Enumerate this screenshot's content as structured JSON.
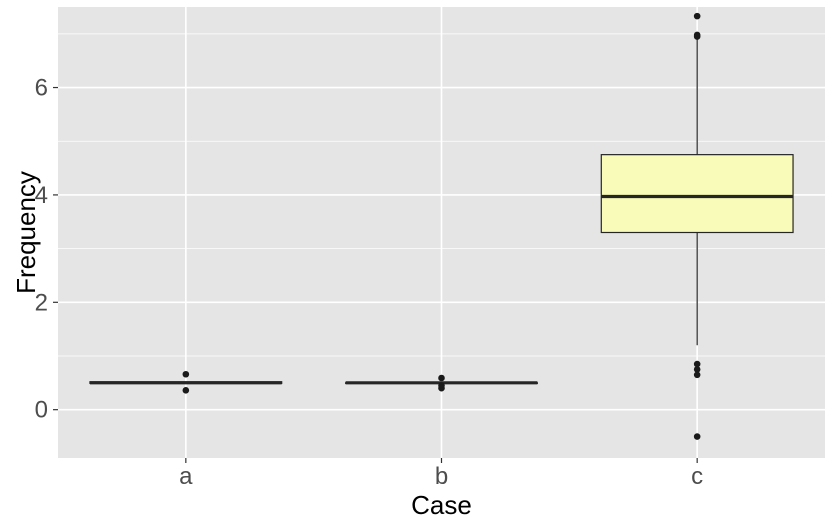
{
  "chart_data": {
    "type": "box",
    "xlabel": "Case",
    "ylabel": "Frequency",
    "ylim": [
      -0.9,
      7.5
    ],
    "y_ticks": [
      0,
      2,
      4,
      6
    ],
    "grid": true,
    "legend": "none",
    "categories": [
      "a",
      "b",
      "c"
    ],
    "boxes": [
      {
        "category": "a",
        "q1": 0.49,
        "median": 0.5,
        "q3": 0.52,
        "whisker_low": 0.49,
        "whisker_high": 0.52,
        "outliers": [
          0.36,
          0.66
        ],
        "fill": "#e6e6e6"
      },
      {
        "category": "b",
        "q1": 0.5,
        "median": 0.5,
        "q3": 0.5,
        "whisker_low": 0.5,
        "whisker_high": 0.5,
        "outliers": [
          0.4,
          0.45,
          0.59
        ],
        "fill": "#e6e6e6"
      },
      {
        "category": "c",
        "q1": 3.3,
        "median": 3.97,
        "q3": 4.75,
        "whisker_low": 1.2,
        "whisker_high": 6.9,
        "outliers": [
          7.33,
          6.98,
          6.95,
          0.85,
          0.75,
          0.65,
          -0.5
        ],
        "fill": "#f9fbb8"
      }
    ],
    "colors": {
      "panel": "#e5e5e5",
      "grid": "#ffffff",
      "box_line": "#262626",
      "point": "#1a1a1a"
    }
  }
}
